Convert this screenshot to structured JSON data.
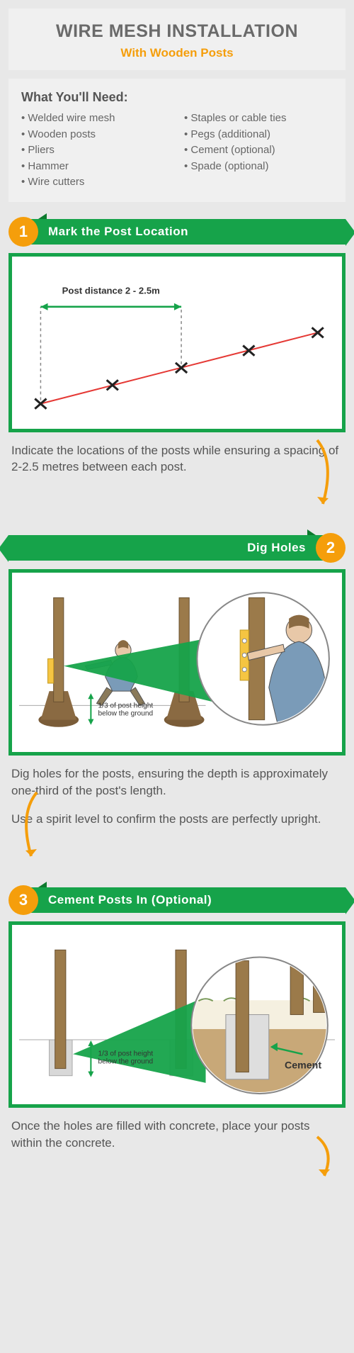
{
  "header": {
    "title": "WIRE MESH INSTALLATION",
    "subtitle": "With Wooden Posts"
  },
  "materials": {
    "title": "What You'll Need:",
    "col1": [
      "Welded wire mesh",
      "Wooden posts",
      "Pliers",
      "Hammer",
      "Wire cutters"
    ],
    "col2": [
      "Staples or cable ties",
      "Pegs (additional)",
      "Cement (optional)",
      "Spade (optional)"
    ]
  },
  "steps": [
    {
      "num": "1",
      "title": "Mark the Post Location",
      "align": "left",
      "desc": [
        "Indicate the locations of the posts while ensuring a spacing of 2-2.5 metres between each post."
      ],
      "labels": {
        "distance": "Post distance 2 - 2.5m"
      }
    },
    {
      "num": "2",
      "title": "Dig Holes",
      "align": "right",
      "desc": [
        "Dig holes for the posts, ensuring the depth is approximately one-third of the post's length.",
        "Use a spirit level to confirm the posts are perfectly upright."
      ],
      "labels": {
        "depth": "1/3 of post height\nbelow the ground"
      }
    },
    {
      "num": "3",
      "title": "Cement Posts In (Optional)",
      "align": "left",
      "desc": [
        "Once the holes are filled with concrete, place your posts within the concrete."
      ],
      "labels": {
        "depth": "1/3 of post height\nbelow the ground",
        "cement": "Cement"
      }
    }
  ],
  "colors": {
    "orange": "#f59e0b",
    "green": "#16a34a",
    "grayText": "#555555",
    "postBrown": "#9b7a4a",
    "skin": "#e8c8a8",
    "shirt": "#7a9bb8",
    "pants": "#8a7a5a"
  }
}
